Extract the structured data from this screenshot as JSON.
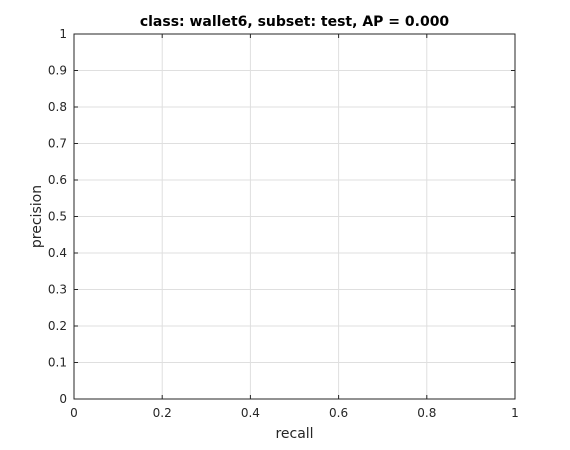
{
  "chart_data": {
    "type": "line",
    "title": "class: wallet6, subset: test, AP = 0.000",
    "xlabel": "recall",
    "ylabel": "precision",
    "xlim": [
      0,
      1
    ],
    "ylim": [
      0,
      1
    ],
    "xticks": [
      0,
      0.2,
      0.4,
      0.6,
      0.8,
      1
    ],
    "xtick_labels": [
      "0",
      "0.2",
      "0.4",
      "0.6",
      "0.8",
      "1"
    ],
    "yticks": [
      0,
      0.1,
      0.2,
      0.3,
      0.4,
      0.5,
      0.6,
      0.7,
      0.8,
      0.9,
      1
    ],
    "ytick_labels": [
      "0",
      "0.1",
      "0.2",
      "0.3",
      "0.4",
      "0.5",
      "0.6",
      "0.7",
      "0.8",
      "0.9",
      "1"
    ],
    "grid": true,
    "series": []
  }
}
